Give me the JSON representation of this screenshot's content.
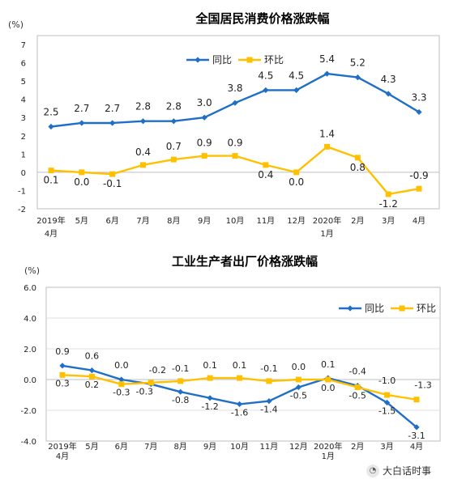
{
  "chart_data": [
    {
      "type": "line",
      "title": "全国居民消费价格涨跌幅",
      "ylabel": "(%)",
      "ylim": [
        -2,
        7
      ],
      "yticks": [
        "7",
        "6",
        "5",
        "4",
        "3",
        "2",
        "1",
        "0",
        "-1",
        "-2"
      ],
      "categories": [
        "2019年",
        "5月",
        "6月",
        "7月",
        "8月",
        "9月",
        "10月",
        "11月",
        "12月",
        "2020年",
        "2月",
        "3月",
        "4月"
      ],
      "categories_sub": [
        "4月",
        "",
        "",
        "",
        "",
        "",
        "",
        "",
        "",
        "1月",
        "",
        "",
        ""
      ],
      "legend_position": "top",
      "series": [
        {
          "name": "同比",
          "color": "#1f6fc8",
          "marker": "diamond",
          "values": [
            2.5,
            2.7,
            2.7,
            2.8,
            2.8,
            3.0,
            3.8,
            4.5,
            4.5,
            5.4,
            5.2,
            4.3,
            3.3
          ],
          "labels": [
            "2.5",
            "2.7",
            "2.7",
            "2.8",
            "2.8",
            "3.0",
            "3.8",
            "4.5",
            "4.5",
            "5.4",
            "5.2",
            "4.3",
            "3.3"
          ]
        },
        {
          "name": "环比",
          "color": "#ffc000",
          "marker": "square",
          "values": [
            0.1,
            0.0,
            -0.1,
            0.4,
            0.7,
            0.9,
            0.9,
            0.4,
            0.0,
            1.4,
            0.8,
            -1.2,
            -0.9
          ],
          "labels": [
            "0.1",
            "0.0",
            "-0.1",
            "0.4",
            "0.7",
            "0.9",
            "0.9",
            "0.4",
            "0.0",
            "1.4",
            "0.8",
            "-1.2",
            "-0.9"
          ]
        }
      ]
    },
    {
      "type": "line",
      "title": "工业生产者出厂价格涨跌幅",
      "ylabel": "(%)",
      "ylim": [
        -4,
        6
      ],
      "yticks": [
        "6.0",
        "4.0",
        "2.0",
        "0.0",
        "-2.0",
        "-4.0"
      ],
      "categories": [
        "2019年",
        "5月",
        "6月",
        "7月",
        "8月",
        "9月",
        "10月",
        "11月",
        "12月",
        "2020年",
        "2月",
        "3月",
        "4月"
      ],
      "categories_sub": [
        "4月",
        "",
        "",
        "",
        "",
        "",
        "",
        "",
        "",
        "1月",
        "",
        "",
        ""
      ],
      "legend_position": "top-right",
      "grid": true,
      "series": [
        {
          "name": "同比",
          "color": "#1f6fc8",
          "marker": "diamond",
          "values": [
            0.9,
            0.6,
            0.0,
            -0.3,
            -0.8,
            -1.2,
            -1.6,
            -1.4,
            -0.5,
            0.1,
            -0.4,
            -1.5,
            -3.1
          ],
          "labels": [
            "0.9",
            "0.6",
            "0.0",
            "-0.3",
            "-0.8",
            "-1.2",
            "-1.6",
            "-1.4",
            "-0.5",
            "0.1",
            "-0.4",
            "-1.5",
            "-3.1"
          ]
        },
        {
          "name": "环比",
          "color": "#ffc000",
          "marker": "square",
          "values": [
            0.3,
            0.2,
            -0.3,
            -0.2,
            -0.1,
            0.1,
            0.1,
            -0.1,
            0.0,
            0.0,
            -0.5,
            -1.0,
            -1.3
          ],
          "labels": [
            "0.3",
            "0.2",
            "-0.3",
            "-0.2",
            "-0.1",
            "0.1",
            "0.1",
            "-0.1",
            "0.0",
            "0.0",
            "-0.5",
            "-1.0",
            "-1.3"
          ]
        }
      ]
    }
  ],
  "watermark": {
    "text": "大白话时事",
    "icon": "wechat-icon"
  }
}
